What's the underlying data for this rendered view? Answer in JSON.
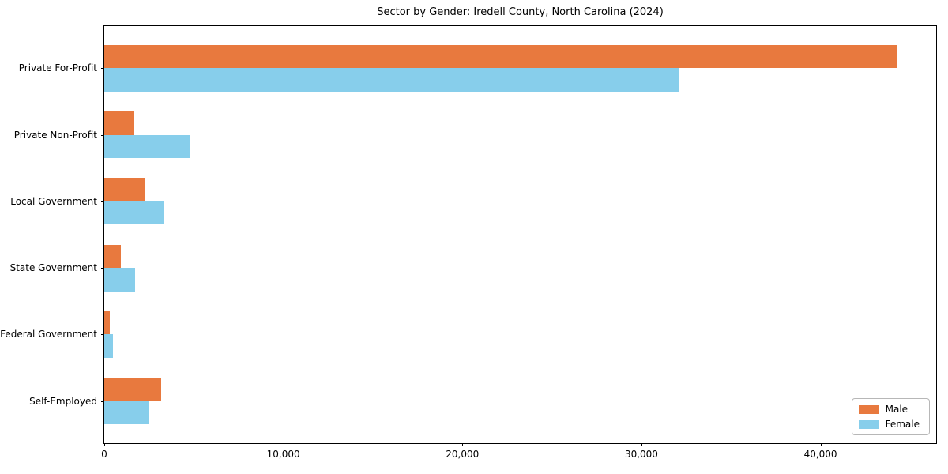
{
  "figure": {
    "background": "#ffffff"
  },
  "chart_data": {
    "type": "bar",
    "orientation": "horizontal",
    "title": "Sector by Gender: Iredell County, North Carolina (2024)",
    "categories": [
      "Private For-Profit",
      "Private Non-Profit",
      "Local Government",
      "State Government",
      "Federal Government",
      "Self-Employed"
    ],
    "series": [
      {
        "name": "Male",
        "color": "#e8793e",
        "values": [
          44250,
          1630,
          2250,
          930,
          310,
          3170
        ]
      },
      {
        "name": "Female",
        "color": "#87ceeb",
        "values": [
          32100,
          4800,
          3300,
          1720,
          490,
          2510
        ]
      }
    ],
    "xlabel": "",
    "ylabel": "",
    "xlim": [
      0,
      46460
    ],
    "xticks": [
      0,
      10000,
      20000,
      30000,
      40000
    ],
    "xtick_labels": [
      "0",
      "10,000",
      "20,000",
      "30,000",
      "40,000"
    ],
    "grid": false,
    "axis_color": "#000000",
    "legend": {
      "position": "lower right",
      "entries": [
        "Male",
        "Female"
      ]
    }
  }
}
